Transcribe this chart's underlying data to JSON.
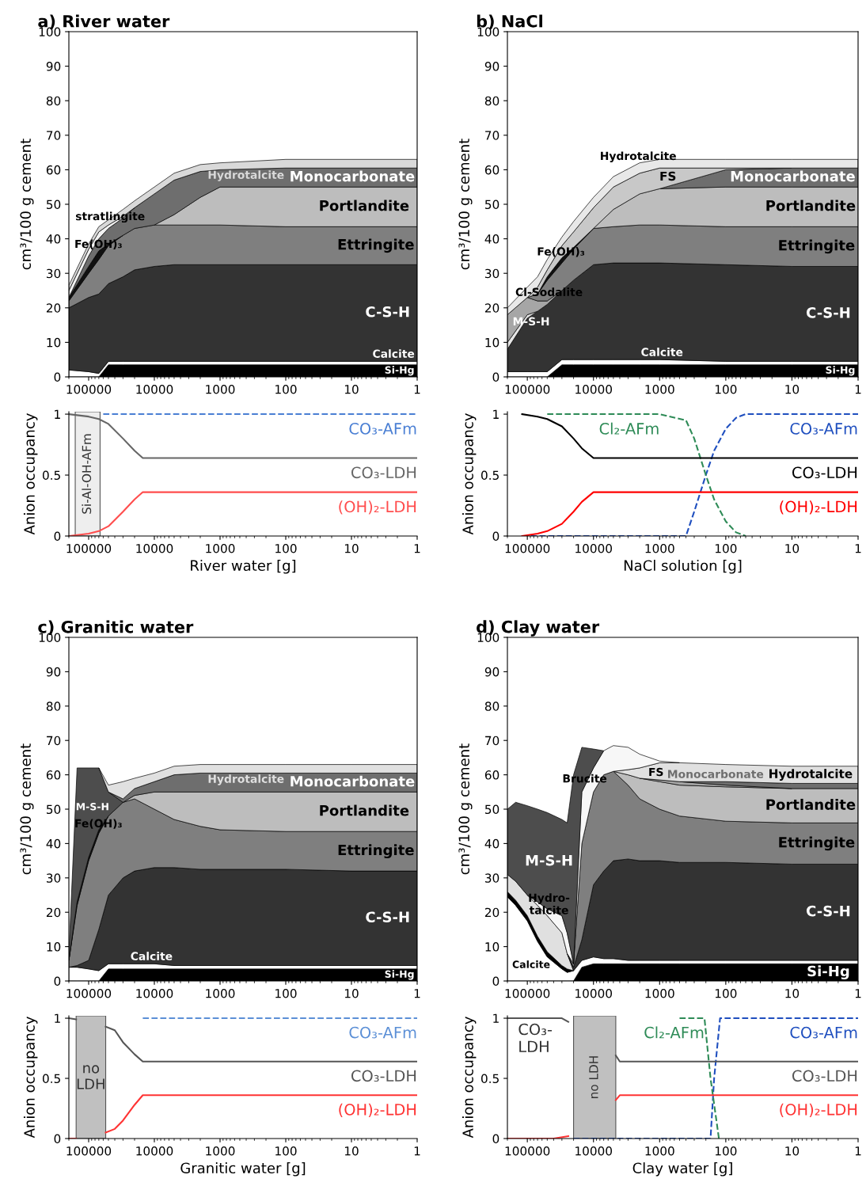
{
  "chart_data": [
    {
      "type": "area",
      "stacked": true,
      "log": "x",
      "title": "a) River water",
      "ylabel": "cm³/100 g cement",
      "xlim": [
        200000,
        1
      ],
      "xticks": [
        100000,
        10000,
        1000,
        100,
        10,
        1
      ],
      "ylim": [
        0,
        100
      ],
      "yticks": [
        0,
        10,
        20,
        30,
        40,
        50,
        60,
        70,
        80,
        90,
        100
      ],
      "x": [
        200000,
        100000,
        70000,
        50000,
        30000,
        20000,
        10000,
        5000,
        2000,
        1000,
        100,
        10,
        1
      ],
      "series": [
        {
          "name": "Si-Hg",
          "color": "#000000",
          "values": [
            null,
            null,
            0,
            3.5,
            3.5,
            3.5,
            3.5,
            3.5,
            3.5,
            3.5,
            3.5,
            3.5,
            3.5
          ]
        },
        {
          "name": "Calcite",
          "color": "#ffffff",
          "values": [
            2,
            1.5,
            1,
            1,
            1,
            1,
            1,
            1,
            1,
            1,
            1,
            1,
            1
          ]
        },
        {
          "name": "C-S-H",
          "color": "#333333",
          "values": [
            18,
            21.5,
            23,
            22.5,
            24.5,
            26.5,
            27.5,
            28,
            28,
            28,
            28,
            28,
            28
          ]
        },
        {
          "name": "Ettringite",
          "color": "#7f7f7f",
          "values": [
            2,
            7,
            10,
            11,
            12,
            12,
            12,
            11.5,
            11.5,
            11.5,
            11,
            11,
            11
          ]
        },
        {
          "name": "Fe(OH)₃",
          "color": "#111111",
          "values": [
            1,
            2,
            2.5,
            0.5,
            0,
            null,
            null,
            null,
            null,
            null,
            null,
            null,
            null
          ]
        },
        {
          "name": "Portlandite",
          "color": "#bdbdbd",
          "values": [
            null,
            null,
            null,
            null,
            null,
            null,
            0,
            3,
            8,
            11,
            11.5,
            11.5,
            11.5
          ]
        },
        {
          "name": "Monocarbonate",
          "color": "#6e6e6e",
          "values": [
            0,
            3,
            3.5,
            4.5,
            5,
            6,
            9,
            10,
            7.5,
            5,
            5.5,
            5.5,
            5.5
          ]
        },
        {
          "name": "stratlingite",
          "color": "#f2f2f2",
          "values": [
            2,
            2,
            2,
            1,
            0.5,
            0,
            null,
            null,
            null,
            null,
            null,
            null,
            null
          ]
        },
        {
          "name": "Hydrotalcite",
          "color": "#d9d9d9",
          "values": [
            1.5,
            1.5,
            1.5,
            1.5,
            2,
            2,
            2,
            2,
            2,
            2,
            2.5,
            2.5,
            2.5
          ]
        }
      ]
    },
    {
      "type": "line",
      "log": "x",
      "xlabel": "River water [g]",
      "ylabel": "Anion occupancy",
      "xlim": [
        200000,
        1
      ],
      "xticks": [
        100000,
        10000,
        1000,
        100,
        10,
        1
      ],
      "ylim": [
        0,
        1.02
      ],
      "yticks": [
        0,
        0.5,
        1
      ],
      "series": [
        {
          "name": "CO₃-AFm",
          "color": "#4a7fd4",
          "line_style": "dashed",
          "x": [
            60000,
            1
          ],
          "values": [
            1,
            1
          ]
        },
        {
          "name": "CO₃-LDH",
          "color": "#666666",
          "line_style": "solid",
          "x": [
            200000,
            100000,
            70000,
            50000,
            30000,
            20000,
            15000,
            1
          ],
          "values": [
            1,
            0.98,
            0.96,
            0.92,
            0.8,
            0.7,
            0.64,
            0.64
          ]
        },
        {
          "name": "(OH)₂-LDH",
          "color": "#ff4d4d",
          "line_style": "solid",
          "x": [
            200000,
            100000,
            70000,
            50000,
            30000,
            20000,
            15000,
            1
          ],
          "values": [
            0,
            0.02,
            0.04,
            0.08,
            0.2,
            0.3,
            0.36,
            0.36
          ]
        }
      ],
      "bands": [
        {
          "axis": "x",
          "from": 160000,
          "to": 67000,
          "label": "Si-Al-OH-AFm",
          "color": "#eeeeee"
        }
      ]
    },
    {
      "type": "area",
      "stacked": true,
      "log": "x",
      "title": "b) NaCl",
      "ylabel": "cm³/100 g cement",
      "xlim": [
        200000,
        1
      ],
      "xticks": [
        100000,
        10000,
        1000,
        100,
        10,
        1
      ],
      "ylim": [
        0,
        100
      ],
      "yticks": [
        0,
        10,
        20,
        30,
        40,
        50,
        60,
        70,
        80,
        90,
        100
      ],
      "x": [
        200000,
        100000,
        70000,
        50000,
        30000,
        20000,
        10000,
        5000,
        2000,
        1000,
        100,
        10,
        1
      ],
      "series": [
        {
          "name": "Si-Hg",
          "color": "#000000",
          "values": [
            null,
            null,
            null,
            0,
            3.5,
            3.5,
            3.5,
            3.5,
            3.5,
            3.5,
            3.5,
            3.5,
            3.5
          ]
        },
        {
          "name": "Calcite",
          "color": "#ffffff",
          "values": [
            1.5,
            1.5,
            1.5,
            1.5,
            1.5,
            1.5,
            1.5,
            1.5,
            1.5,
            1.5,
            1,
            1,
            1
          ]
        },
        {
          "name": "C-S-H",
          "color": "#333333",
          "values": [
            6.5,
            15.5,
            17.5,
            19.5,
            20,
            23,
            27.5,
            28,
            28,
            28,
            28,
            27.5,
            27.5
          ]
        },
        {
          "name": "M-S-H",
          "color": "#e6e6e6",
          "values": [
            2,
            1,
            0,
            null,
            null,
            null,
            null,
            null,
            null,
            null,
            null,
            null,
            null
          ]
        },
        {
          "name": "Cl-Sodalite",
          "color": "#a6a6a6",
          "values": [
            8,
            5,
            3,
            1,
            0,
            null,
            null,
            null,
            null,
            null,
            null,
            null,
            null
          ]
        },
        {
          "name": "Ettringite",
          "color": "#7f7f7f",
          "values": [
            null,
            0,
            2,
            6,
            8,
            9,
            10.5,
            10.5,
            11,
            11,
            11,
            11.5,
            11.5
          ]
        },
        {
          "name": "Fe(OH)₃",
          "color": "#111111",
          "values": [
            null,
            null,
            0,
            1,
            1.5,
            0.5,
            0,
            null,
            null,
            null,
            null,
            null,
            null
          ]
        },
        {
          "name": "Portlandite",
          "color": "#bdbdbd",
          "values": [
            null,
            null,
            null,
            null,
            null,
            null,
            0,
            5,
            9,
            10.5,
            11.5,
            11.5,
            11.5
          ]
        },
        {
          "name": "Monocarbonate",
          "color": "#6e6e6e",
          "values": [
            null,
            null,
            null,
            null,
            null,
            null,
            null,
            null,
            null,
            0,
            5,
            5.5,
            5.5
          ]
        },
        {
          "name": "FS",
          "color": "#c8c8c8",
          "values": [
            null,
            0,
            2,
            2,
            3.5,
            4.5,
            6,
            6.5,
            6,
            6,
            0.5,
            0,
            null
          ]
        },
        {
          "name": "Hydrotalcite",
          "color": "#e8e8e8",
          "values": [
            2,
            3,
            3,
            3,
            2.5,
            3,
            3,
            3,
            3,
            2.5,
            2.5,
            2.5,
            2.5
          ]
        }
      ]
    },
    {
      "type": "line",
      "log": "x",
      "xlabel": "NaCl solution [g]",
      "ylabel": "Anion occupancy",
      "xlim": [
        200000,
        1
      ],
      "xticks": [
        100000,
        10000,
        1000,
        100,
        10,
        1
      ],
      "ylim": [
        0,
        1.02
      ],
      "yticks": [
        0,
        0.5,
        1
      ],
      "series": [
        {
          "name": "CO₃-AFm",
          "color": "#1f4fbf",
          "line_style": "dashed",
          "x": [
            120000,
            400,
            300,
            200,
            150,
            100,
            70,
            50,
            1
          ],
          "values": [
            0,
            0,
            0.2,
            0.5,
            0.7,
            0.88,
            0.97,
            1,
            1
          ]
        },
        {
          "name": "Cl₂-AFm",
          "color": "#2e8b57",
          "line_style": "dashed",
          "x": [
            50000,
            1000,
            400,
            300,
            200,
            150,
            100,
            70,
            50
          ],
          "values": [
            1,
            1,
            0.95,
            0.8,
            0.5,
            0.3,
            0.12,
            0.03,
            0
          ]
        },
        {
          "name": "CO₃-LDH",
          "color": "#000000",
          "line_style": "solid",
          "x": [
            120000,
            70000,
            50000,
            30000,
            20000,
            15000,
            10000,
            1
          ],
          "values": [
            1,
            0.98,
            0.96,
            0.9,
            0.8,
            0.72,
            0.64,
            0.64
          ]
        },
        {
          "name": "(OH)₂-LDH",
          "color": "#ff0000",
          "line_style": "solid",
          "x": [
            120000,
            70000,
            50000,
            30000,
            20000,
            15000,
            10000,
            1
          ],
          "values": [
            0,
            0.02,
            0.04,
            0.1,
            0.2,
            0.28,
            0.36,
            0.36
          ]
        }
      ]
    },
    {
      "type": "area",
      "stacked": true,
      "log": "x",
      "title": "c) Granitic water",
      "ylabel": "cm³/100 g cement",
      "xlim": [
        200000,
        1
      ],
      "xticks": [
        100000,
        10000,
        1000,
        100,
        10,
        1
      ],
      "ylim": [
        0,
        100
      ],
      "yticks": [
        0,
        10,
        20,
        30,
        40,
        50,
        60,
        70,
        80,
        90,
        100
      ],
      "x": [
        200000,
        150000,
        100000,
        70000,
        50000,
        30000,
        20000,
        10000,
        5000,
        2000,
        1000,
        100,
        10,
        1
      ],
      "series": [
        {
          "name": "Si-Hg",
          "color": "#000000",
          "values": [
            null,
            null,
            null,
            0,
            3.5,
            3.5,
            3.5,
            3.5,
            3.5,
            3.5,
            3.5,
            3.5,
            3.5,
            3.5
          ]
        },
        {
          "name": "Calcite",
          "color": "#ffffff",
          "values": [
            4,
            4,
            3.5,
            3,
            1.5,
            1.5,
            1.5,
            1.5,
            1,
            1,
            1,
            1,
            1,
            1
          ]
        },
        {
          "name": "C-S-H",
          "color": "#333333",
          "values": [
            0,
            0.5,
            2.5,
            12,
            20,
            25,
            27,
            28,
            28.5,
            28,
            28,
            28,
            27.5,
            27.5
          ]
        },
        {
          "name": "Ettringite",
          "color": "#7f7f7f",
          "values": [
            2,
            17.5,
            29,
            28,
            23,
            22,
            21,
            17,
            14,
            12.5,
            11.5,
            11,
            11.5,
            11.5
          ]
        },
        {
          "name": "Fe(OH)₃",
          "color": "#111111",
          "values": [
            0,
            1,
            1,
            1,
            0,
            null,
            null,
            null,
            null,
            null,
            null,
            null,
            null,
            null
          ]
        },
        {
          "name": "M-S-H",
          "color": "#4d4d4d",
          "values": [
            2,
            39,
            26,
            18,
            7,
            0,
            null,
            null,
            null,
            null,
            null,
            null,
            null,
            null
          ]
        },
        {
          "name": "Portlandite",
          "color": "#bdbdbd",
          "values": [
            null,
            null,
            null,
            null,
            null,
            0,
            1,
            5,
            8,
            10,
            11,
            11.5,
            11.5,
            11.5
          ]
        },
        {
          "name": "Monocarbonate",
          "color": "#6e6e6e",
          "values": [
            null,
            null,
            null,
            null,
            0,
            1,
            2,
            3,
            5,
            5.5,
            5.5,
            5.5,
            5.5,
            5.5
          ]
        },
        {
          "name": "Hydrotalcite",
          "color": "#e0e0e0",
          "values": [
            null,
            null,
            null,
            0,
            2,
            5,
            3,
            2.5,
            2.5,
            2.5,
            2.5,
            2.5,
            2.5,
            2.5
          ]
        }
      ]
    },
    {
      "type": "line",
      "log": "x",
      "xlabel": "Granitic water [g]",
      "ylabel": "Anion occupancy",
      "xlim": [
        200000,
        1
      ],
      "xticks": [
        100000,
        10000,
        1000,
        100,
        10,
        1
      ],
      "ylim": [
        0,
        1.02
      ],
      "yticks": [
        0,
        0.5,
        1
      ],
      "series": [
        {
          "name": "CO₃-AFm",
          "color": "#5b8fd6",
          "line_style": "dashed",
          "x": [
            15000,
            1
          ],
          "values": [
            1,
            1
          ]
        },
        {
          "name": "CO₃-LDH",
          "color": "#555555",
          "line_style": "solid",
          "x": [
            200000,
            155000,
            100000,
            55000,
            40000,
            30000,
            20000,
            15000,
            1
          ],
          "values": [
            1,
            0.99,
            null,
            0.93,
            0.9,
            0.8,
            0.7,
            0.64,
            0.64
          ]
        },
        {
          "name": "(OH)₂-LDH",
          "color": "#ff3333",
          "line_style": "solid",
          "x": [
            200000,
            155000,
            100000,
            55000,
            40000,
            30000,
            20000,
            15000,
            1
          ],
          "values": [
            0,
            0,
            null,
            0.05,
            0.08,
            0.15,
            0.28,
            0.36,
            0.36
          ]
        }
      ],
      "bands": [
        {
          "axis": "x",
          "from": 155000,
          "to": 55000,
          "label": "no\nLDH",
          "color": "#c0c0c0"
        }
      ]
    },
    {
      "type": "area",
      "stacked": true,
      "log": "x",
      "title": "d) Clay water",
      "ylabel": "cm³/100 g cement",
      "xlim": [
        200000,
        1
      ],
      "xticks": [
        100000,
        10000,
        1000,
        100,
        10,
        1
      ],
      "ylim": [
        0,
        100
      ],
      "yticks": [
        0,
        10,
        20,
        30,
        40,
        50,
        60,
        70,
        80,
        90,
        100
      ],
      "x": [
        200000,
        150000,
        100000,
        70000,
        50000,
        30000,
        25000,
        20000,
        15000,
        10000,
        7000,
        5000,
        3000,
        2000,
        1000,
        500,
        100,
        10,
        1
      ],
      "series": [
        {
          "name": "Si-Hg",
          "color": "#000000",
          "values": [
            null,
            null,
            null,
            null,
            null,
            null,
            null,
            0,
            4,
            5,
            5,
            5,
            5,
            5,
            5,
            5,
            5,
            5,
            5
          ]
        },
        {
          "name": "Calcite",
          "color": "#ffffff",
          "values": [
            24.5,
            22,
            17.5,
            11.5,
            7,
            3.5,
            2.5,
            3,
            2,
            2,
            1.5,
            1.5,
            1,
            1,
            1,
            1,
            1,
            1,
            1
          ]
        },
        {
          "color": "#000000",
          "values": [
            1.5,
            1.5,
            1.5,
            1.5,
            1.5,
            1,
            1,
            0,
            null,
            null,
            null,
            null,
            null,
            null,
            null,
            null,
            null,
            null,
            null
          ]
        },
        {
          "name": "Hydro-\ntalcite",
          "color": "#e0e0e0",
          "values": [
            5,
            5.5,
            6,
            9,
            10.5,
            9.5,
            4.5,
            0,
            null,
            null,
            null,
            null,
            null,
            null,
            null,
            null,
            null,
            null,
            null
          ]
        },
        {
          "name": "C-S-H",
          "color": "#333333",
          "values": [
            null,
            null,
            null,
            null,
            null,
            null,
            0,
            1,
            6,
            21,
            25.5,
            28.5,
            29.5,
            29,
            29,
            28.5,
            28.5,
            28,
            28
          ]
        },
        {
          "name": "Ettringite",
          "color": "#7f7f7f",
          "values": [
            null,
            null,
            null,
            null,
            null,
            null,
            0,
            1,
            28,
            27,
            28,
            26,
            21.5,
            18,
            15,
            13.5,
            12,
            12,
            12
          ]
        },
        {
          "name": "Portlandite",
          "color": "#bdbdbd",
          "values": [
            null,
            null,
            null,
            null,
            null,
            null,
            null,
            null,
            null,
            null,
            null,
            0,
            3,
            6,
            8,
            9,
            10,
            10,
            10
          ]
        },
        {
          "name": "FS",
          "color": "#a6a6a6",
          "values": [
            null,
            null,
            null,
            null,
            null,
            null,
            null,
            null,
            null,
            null,
            null,
            null,
            null,
            0,
            0.5,
            1,
            0.5,
            0,
            null
          ]
        },
        {
          "name": "Monocarbonate",
          "color": "#6e6e6e",
          "values": [
            null,
            null,
            null,
            null,
            null,
            null,
            null,
            null,
            null,
            null,
            null,
            null,
            null,
            null,
            null,
            0,
            1,
            1.5,
            1.5
          ]
        },
        {
          "name": "Hydrotalcite",
          "color": "#e0e0e0",
          "values": [
            null,
            null,
            null,
            null,
            null,
            null,
            null,
            null,
            null,
            null,
            null,
            0,
            1.5,
            3,
            5,
            5.5,
            5,
            5,
            5
          ]
        },
        {
          "name": "Brucite",
          "color": "#f7f7f7",
          "values": [
            null,
            null,
            0,
            1,
            2,
            5,
            6,
            0,
            15,
            7,
            7,
            7.5,
            6.5,
            4,
            0.5,
            0,
            null,
            null,
            null
          ]
        },
        {
          "name": "M-S-H",
          "color": "#4d4d4d",
          "values": [
            19,
            23,
            26,
            27,
            28,
            28,
            32,
            55,
            13,
            5.5,
            0,
            null,
            null,
            null,
            null,
            null,
            null,
            null,
            null
          ]
        }
      ]
    },
    {
      "type": "line",
      "log": "x",
      "xlabel": "Clay water [g]",
      "ylabel": "Anion occupancy",
      "xlim": [
        200000,
        1
      ],
      "xticks": [
        100000,
        10000,
        1000,
        100,
        10,
        1
      ],
      "ylim": [
        0,
        1.02
      ],
      "yticks": [
        0,
        0.5,
        1
      ],
      "series": [
        {
          "name": "CO₃-AFm",
          "color": "#1f4fbf",
          "line_style": "dashed",
          "x": [
            20000,
            170,
            150,
            122,
            1
          ],
          "values": [
            0,
            0,
            0.5,
            1,
            1
          ]
        },
        {
          "name": "Cl₂-AFm",
          "color": "#2e8b57",
          "line_style": "dashed",
          "x": [
            500,
            210,
            170,
            127
          ],
          "values": [
            1,
            1,
            0.5,
            0
          ]
        },
        {
          "name": "CO₃-LDH",
          "color": "#555555",
          "line_style": "solid",
          "x": [
            200000,
            30000,
            24000,
            10000,
            4600,
            4000,
            1
          ],
          "values": [
            1,
            1,
            0.97,
            null,
            0.69,
            0.64,
            0.64
          ]
        },
        {
          "name": "(OH)₂-LDH",
          "color": "#ff3333",
          "line_style": "solid",
          "x": [
            200000,
            40000,
            24000,
            10000,
            4600,
            4000,
            1
          ],
          "values": [
            0,
            0,
            0.02,
            null,
            0.32,
            0.36,
            0.36
          ]
        }
      ],
      "bands": [
        {
          "axis": "x",
          "from": 20000,
          "to": 4600,
          "label": "no LDH",
          "color": "#c0c0c0"
        }
      ],
      "annotations": [
        "CO₃-\nLDH"
      ]
    }
  ]
}
